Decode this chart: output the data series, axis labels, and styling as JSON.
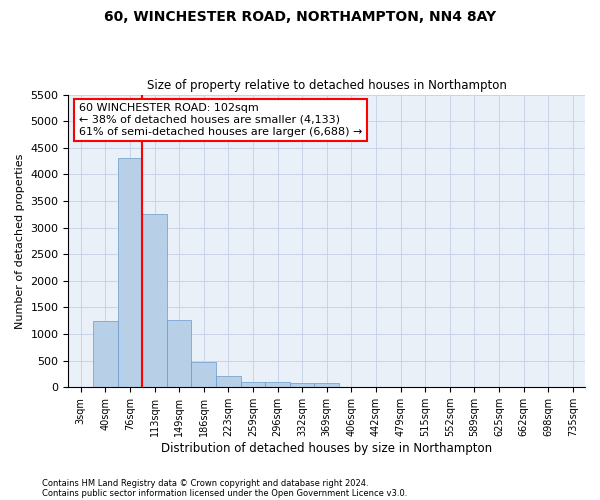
{
  "title1": "60, WINCHESTER ROAD, NORTHAMPTON, NN4 8AY",
  "title2": "Size of property relative to detached houses in Northampton",
  "xlabel": "Distribution of detached houses by size in Northampton",
  "ylabel": "Number of detached properties",
  "footer1": "Contains HM Land Registry data © Crown copyright and database right 2024.",
  "footer2": "Contains public sector information licensed under the Open Government Licence v3.0.",
  "bar_labels": [
    "3sqm",
    "40sqm",
    "76sqm",
    "113sqm",
    "149sqm",
    "186sqm",
    "223sqm",
    "259sqm",
    "296sqm",
    "332sqm",
    "369sqm",
    "406sqm",
    "442sqm",
    "479sqm",
    "515sqm",
    "552sqm",
    "589sqm",
    "625sqm",
    "662sqm",
    "698sqm",
    "735sqm"
  ],
  "bar_values": [
    0,
    1250,
    4300,
    3250,
    1270,
    480,
    220,
    100,
    90,
    70,
    70,
    0,
    0,
    0,
    0,
    0,
    0,
    0,
    0,
    0,
    0
  ],
  "bar_color": "#b8cfe8",
  "bar_edge_color": "#6699cc",
  "ylim": [
    0,
    5500
  ],
  "yticks": [
    0,
    500,
    1000,
    1500,
    2000,
    2500,
    3000,
    3500,
    4000,
    4500,
    5000,
    5500
  ],
  "vline_x": 2.5,
  "vline_color": "red",
  "annotation_text": "60 WINCHESTER ROAD: 102sqm\n← 38% of detached houses are smaller (4,133)\n61% of semi-detached houses are larger (6,688) →",
  "grid_color": "#c8d4e8",
  "bg_color": "#eaf0f8"
}
